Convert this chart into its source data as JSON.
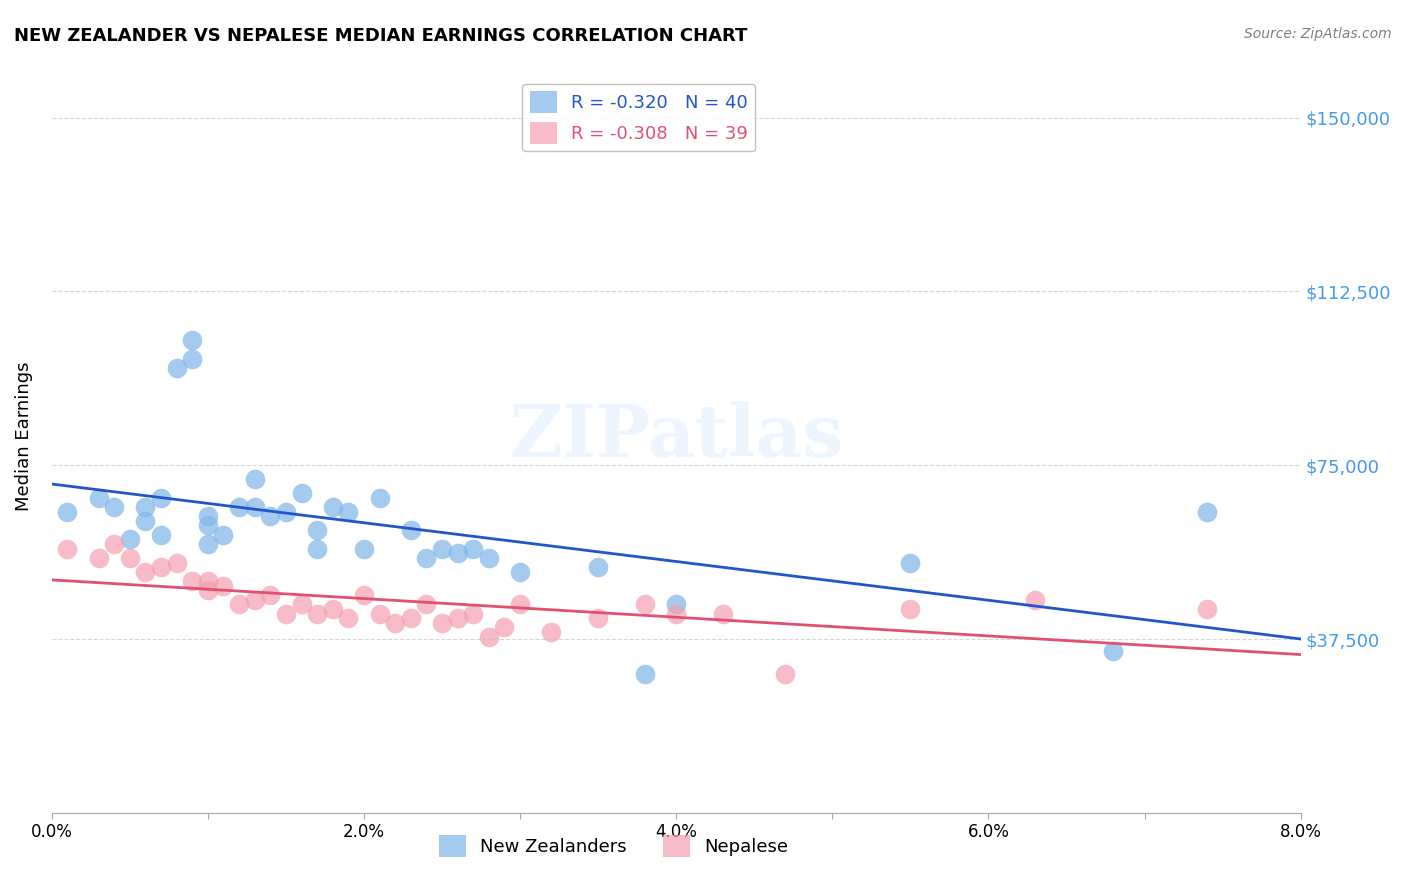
{
  "title": "NEW ZEALANDER VS NEPALESE MEDIAN EARNINGS CORRELATION CHART",
  "source": "Source: ZipAtlas.com",
  "xlabel": "",
  "ylabel": "Median Earnings",
  "xlim": [
    0.0,
    0.08
  ],
  "ylim": [
    0,
    162500
  ],
  "yticks": [
    0,
    37500,
    75000,
    112500,
    150000
  ],
  "ytick_labels": [
    "",
    "$37,500",
    "$75,000",
    "$112,500",
    "$150,000"
  ],
  "xticks": [
    0.0,
    0.01,
    0.02,
    0.03,
    0.04,
    0.05,
    0.06,
    0.07,
    0.08
  ],
  "xtick_labels": [
    "0.0%",
    "",
    "2.0%",
    "",
    "4.0%",
    "",
    "6.0%",
    "",
    "8.0%"
  ],
  "nz_color": "#7EB6E8",
  "nep_color": "#F4A0B0",
  "nz_line_color": "#2255CC",
  "nep_line_color": "#E05070",
  "legend_box_color": "#7EB6E8",
  "legend_box_color2": "#F4A0B0",
  "R_nz": -0.32,
  "N_nz": 40,
  "R_nep": -0.308,
  "N_nep": 39,
  "watermark": "ZIPatlas",
  "nz_x": [
    0.001,
    0.003,
    0.004,
    0.005,
    0.006,
    0.006,
    0.007,
    0.007,
    0.008,
    0.009,
    0.009,
    0.01,
    0.01,
    0.01,
    0.011,
    0.012,
    0.013,
    0.013,
    0.014,
    0.015,
    0.016,
    0.017,
    0.017,
    0.018,
    0.019,
    0.02,
    0.021,
    0.023,
    0.024,
    0.025,
    0.026,
    0.027,
    0.028,
    0.03,
    0.035,
    0.038,
    0.04,
    0.055,
    0.068,
    0.074
  ],
  "nz_y": [
    65000,
    68000,
    66000,
    59000,
    66000,
    63000,
    68000,
    60000,
    96000,
    102000,
    98000,
    64000,
    58000,
    62000,
    60000,
    66000,
    66000,
    72000,
    64000,
    65000,
    69000,
    61000,
    57000,
    66000,
    65000,
    57000,
    68000,
    61000,
    55000,
    57000,
    56000,
    57000,
    55000,
    52000,
    53000,
    30000,
    45000,
    54000,
    35000,
    65000
  ],
  "nep_x": [
    0.001,
    0.003,
    0.004,
    0.005,
    0.006,
    0.007,
    0.008,
    0.009,
    0.01,
    0.01,
    0.011,
    0.012,
    0.013,
    0.014,
    0.015,
    0.016,
    0.017,
    0.018,
    0.019,
    0.02,
    0.021,
    0.022,
    0.023,
    0.024,
    0.025,
    0.026,
    0.027,
    0.028,
    0.029,
    0.03,
    0.032,
    0.035,
    0.038,
    0.04,
    0.043,
    0.047,
    0.055,
    0.063,
    0.074
  ],
  "nep_y": [
    57000,
    55000,
    58000,
    55000,
    52000,
    53000,
    54000,
    50000,
    50000,
    48000,
    49000,
    45000,
    46000,
    47000,
    43000,
    45000,
    43000,
    44000,
    42000,
    47000,
    43000,
    41000,
    42000,
    45000,
    41000,
    42000,
    43000,
    38000,
    40000,
    45000,
    39000,
    42000,
    45000,
    43000,
    43000,
    30000,
    44000,
    46000,
    44000
  ]
}
